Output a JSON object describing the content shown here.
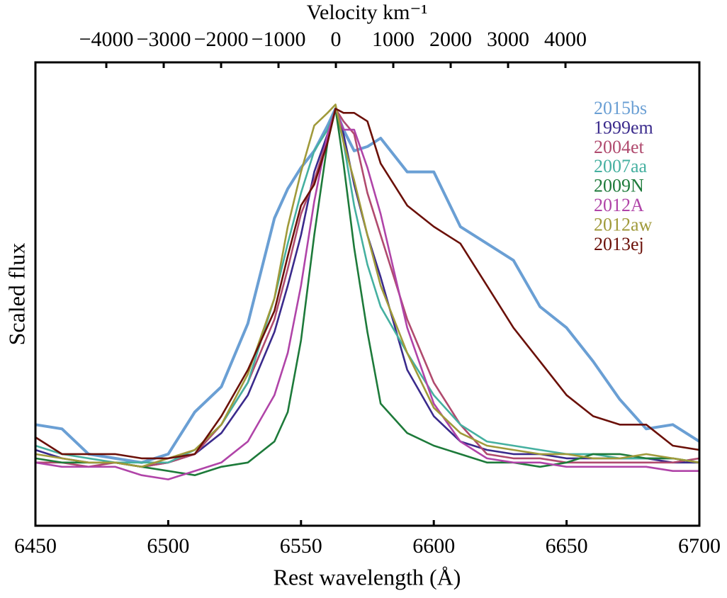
{
  "chart_data": {
    "type": "line",
    "xlabel": "Rest wavelength (Å)",
    "ylabel": "Scaled flux",
    "x2label": "Velocity km⁻¹",
    "xlim": [
      6450,
      6700
    ],
    "xticks": [
      6450,
      6500,
      6550,
      6600,
      6650,
      6700
    ],
    "x2lim": [
      -5235,
      6333
    ],
    "x2ticks": [
      {
        "value": -4000,
        "label": "−4000"
      },
      {
        "value": -3000,
        "label": "−3000"
      },
      {
        "value": -2000,
        "label": "−2000"
      },
      {
        "value": -1000,
        "label": "−1000"
      },
      0,
      1000,
      2000,
      3000,
      4000
    ],
    "ylim": [
      0,
      1.1
    ],
    "legend": "upper right",
    "x": [
      6450,
      6460,
      6470,
      6480,
      6490,
      6500,
      6510,
      6520,
      6530,
      6540,
      6545,
      6550,
      6555,
      6560,
      6563,
      6566,
      6570,
      6575,
      6580,
      6590,
      6600,
      6610,
      6620,
      6630,
      6640,
      6650,
      6660,
      6670,
      6680,
      6690,
      6700
    ],
    "series": [
      {
        "name": "2015bs",
        "color": "#6a9fd4",
        "values": [
          0.24,
          0.23,
          0.17,
          0.16,
          0.15,
          0.17,
          0.27,
          0.33,
          0.48,
          0.73,
          0.8,
          0.85,
          0.89,
          0.95,
          0.99,
          0.94,
          0.89,
          0.9,
          0.92,
          0.84,
          0.84,
          0.71,
          0.67,
          0.63,
          0.52,
          0.47,
          0.39,
          0.3,
          0.23,
          0.24,
          0.2
        ]
      },
      {
        "name": "1999em",
        "color": "#3a2a8c",
        "values": [
          0.18,
          0.16,
          0.15,
          0.15,
          0.14,
          0.15,
          0.17,
          0.22,
          0.31,
          0.46,
          0.57,
          0.69,
          0.84,
          0.93,
          0.99,
          0.93,
          0.81,
          0.69,
          0.59,
          0.37,
          0.26,
          0.2,
          0.18,
          0.17,
          0.17,
          0.16,
          0.16,
          0.16,
          0.16,
          0.15,
          0.15
        ]
      },
      {
        "name": "2004et",
        "color": "#b04a6e",
        "values": [
          0.15,
          0.15,
          0.14,
          0.15,
          0.14,
          0.15,
          0.17,
          0.24,
          0.34,
          0.49,
          0.61,
          0.74,
          0.82,
          0.92,
          0.99,
          0.96,
          0.93,
          0.79,
          0.69,
          0.49,
          0.34,
          0.24,
          0.17,
          0.16,
          0.16,
          0.15,
          0.15,
          0.15,
          0.15,
          0.15,
          0.16
        ]
      },
      {
        "name": "2007aa",
        "color": "#45b0a0",
        "values": [
          0.19,
          0.17,
          0.16,
          0.15,
          0.15,
          0.15,
          0.18,
          0.24,
          0.34,
          0.54,
          0.67,
          0.79,
          0.89,
          0.94,
          0.99,
          0.91,
          0.76,
          0.62,
          0.52,
          0.41,
          0.31,
          0.24,
          0.2,
          0.19,
          0.18,
          0.17,
          0.17,
          0.16,
          0.16,
          0.16,
          0.15
        ]
      },
      {
        "name": "2009N",
        "color": "#1d7a3a",
        "values": [
          0.16,
          0.15,
          0.15,
          0.15,
          0.14,
          0.13,
          0.12,
          0.14,
          0.15,
          0.2,
          0.27,
          0.44,
          0.69,
          0.91,
          0.99,
          0.86,
          0.66,
          0.46,
          0.29,
          0.22,
          0.19,
          0.17,
          0.15,
          0.15,
          0.14,
          0.15,
          0.17,
          0.17,
          0.16,
          0.16,
          0.15
        ]
      },
      {
        "name": "2012A",
        "color": "#b044a8",
        "values": [
          0.15,
          0.14,
          0.14,
          0.14,
          0.12,
          0.11,
          0.13,
          0.15,
          0.2,
          0.31,
          0.41,
          0.57,
          0.77,
          0.93,
          0.99,
          0.94,
          0.94,
          0.85,
          0.74,
          0.47,
          0.29,
          0.2,
          0.16,
          0.15,
          0.15,
          0.14,
          0.14,
          0.14,
          0.14,
          0.13,
          0.13
        ]
      },
      {
        "name": "2012aw",
        "color": "#a09a3a",
        "values": [
          0.17,
          0.16,
          0.15,
          0.15,
          0.14,
          0.16,
          0.18,
          0.24,
          0.36,
          0.54,
          0.71,
          0.84,
          0.95,
          0.98,
          1.0,
          0.91,
          0.82,
          0.69,
          0.57,
          0.41,
          0.28,
          0.22,
          0.19,
          0.18,
          0.17,
          0.17,
          0.16,
          0.16,
          0.17,
          0.16,
          0.15
        ]
      },
      {
        "name": "2013ej",
        "color": "#6b1008",
        "values": [
          0.21,
          0.17,
          0.17,
          0.17,
          0.16,
          0.16,
          0.17,
          0.26,
          0.37,
          0.51,
          0.64,
          0.76,
          0.81,
          0.91,
          0.99,
          0.98,
          0.98,
          0.96,
          0.86,
          0.76,
          0.71,
          0.67,
          0.57,
          0.47,
          0.39,
          0.31,
          0.26,
          0.24,
          0.24,
          0.19,
          0.18
        ]
      }
    ]
  }
}
